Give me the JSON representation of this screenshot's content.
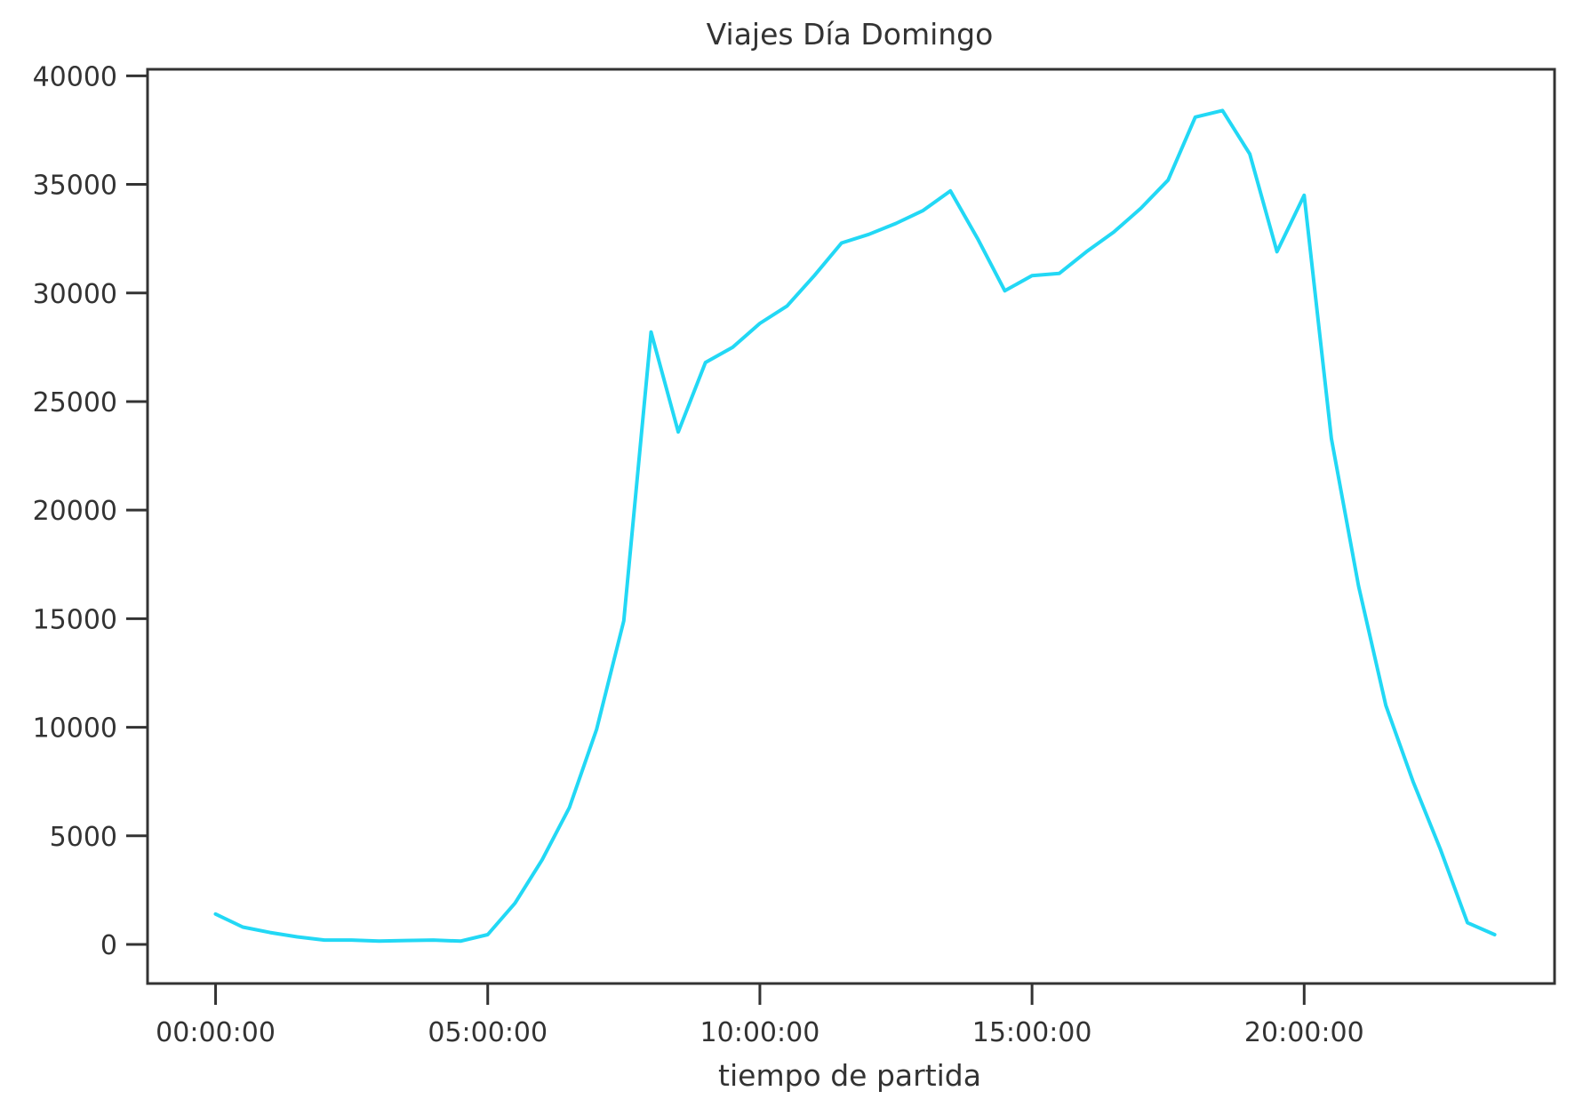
{
  "chart_data": {
    "type": "line",
    "title": "Viajes Día Domingo",
    "xlabel": "tiempo de partida",
    "ylabel": "",
    "x_unit": "hours",
    "xlim": [
      -1.25,
      24.6
    ],
    "ylim": [
      -1800,
      40300
    ],
    "x_ticks": [
      {
        "value": 0,
        "label": "00:00:00"
      },
      {
        "value": 5,
        "label": "05:00:00"
      },
      {
        "value": 10,
        "label": "10:00:00"
      },
      {
        "value": 15,
        "label": "15:00:00"
      },
      {
        "value": 20,
        "label": "20:00:00"
      }
    ],
    "y_ticks": [
      {
        "value": 0,
        "label": "0"
      },
      {
        "value": 5000,
        "label": "5000"
      },
      {
        "value": 10000,
        "label": "10000"
      },
      {
        "value": 15000,
        "label": "15000"
      },
      {
        "value": 20000,
        "label": "20000"
      },
      {
        "value": 25000,
        "label": "25000"
      },
      {
        "value": 30000,
        "label": "30000"
      },
      {
        "value": 35000,
        "label": "35000"
      },
      {
        "value": 40000,
        "label": "40000"
      }
    ],
    "grid": false,
    "series": [
      {
        "color": "#22d8f5",
        "x": [
          0,
          0.5,
          1,
          1.5,
          2,
          2.5,
          3,
          3.5,
          4,
          4.5,
          5,
          5.5,
          6,
          6.5,
          7,
          7.5,
          8,
          8.5,
          9,
          9.5,
          10,
          10.5,
          11,
          11.5,
          12,
          12.5,
          13,
          13.5,
          14,
          14.5,
          15,
          15.5,
          16,
          16.5,
          17,
          17.5,
          18,
          18.5,
          19,
          19.5,
          20,
          20.5,
          21,
          21.5,
          22,
          22.5,
          23,
          23.5
        ],
        "values": [
          1400,
          800,
          550,
          350,
          200,
          200,
          150,
          180,
          200,
          150,
          450,
          1900,
          3900,
          6300,
          9900,
          14900,
          28200,
          23600,
          26800,
          27500,
          28600,
          29400,
          30800,
          32300,
          32700,
          33200,
          33800,
          34700,
          32500,
          30100,
          30800,
          30900,
          31900,
          32800,
          33900,
          35200,
          38100,
          38400,
          36400,
          31900,
          34500,
          23300,
          16500,
          11000,
          7500,
          4400,
          1000,
          450
        ]
      }
    ]
  }
}
